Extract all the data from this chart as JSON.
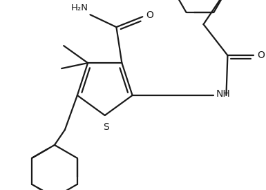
{
  "background": "#ffffff",
  "line_color": "#1a1a1a",
  "line_width": 1.6,
  "fig_width": 3.85,
  "fig_height": 2.75,
  "dpi": 100,
  "xlim": [
    0,
    385
  ],
  "ylim": [
    0,
    275
  ]
}
